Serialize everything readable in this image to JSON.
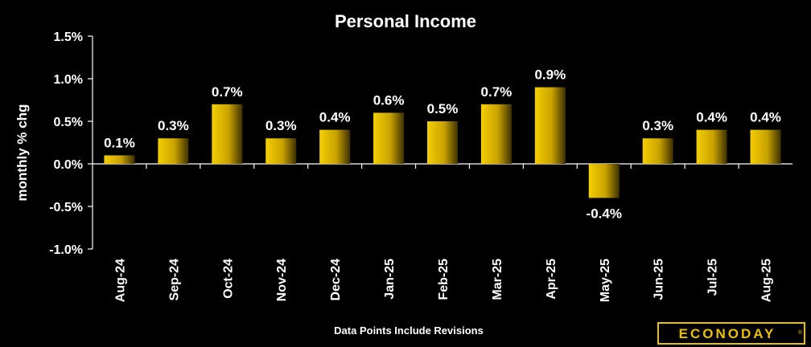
{
  "chart_data": {
    "type": "bar",
    "title": "Personal Income",
    "ylabel": "monthly % chg",
    "xlabel": "",
    "categories": [
      "Aug-24",
      "Sep-24",
      "Oct-24",
      "Nov-24",
      "Dec-24",
      "Jan-25",
      "Feb-25",
      "Mar-25",
      "Apr-25",
      "May-25",
      "Jun-25",
      "Jul-25",
      "Aug-25"
    ],
    "values": [
      0.1,
      0.3,
      0.7,
      0.3,
      0.4,
      0.6,
      0.5,
      0.7,
      0.9,
      -0.4,
      0.3,
      0.4,
      0.4
    ],
    "data_labels": [
      "0.1%",
      "0.3%",
      "0.7%",
      "0.3%",
      "0.4%",
      "0.6%",
      "0.5%",
      "0.7%",
      "0.9%",
      "-0.4%",
      "0.3%",
      "0.4%",
      "0.4%"
    ],
    "ylim": [
      -1.0,
      1.5
    ],
    "yticks": [
      1.5,
      1.0,
      0.5,
      0.0,
      -0.5,
      -1.0
    ],
    "ytick_labels": [
      "1.5%",
      "1.0%",
      "0.5%",
      "0.0%",
      "-0.5%",
      "-1.0%"
    ],
    "grid": false,
    "legend": "none",
    "bar_color": "#f0c800",
    "bar_color_dark": "#5a4800",
    "background": "#000000"
  },
  "footnote": "Data Points Include Revisions",
  "logo": {
    "text": "ECONODAY",
    "color": "#e8c200"
  }
}
